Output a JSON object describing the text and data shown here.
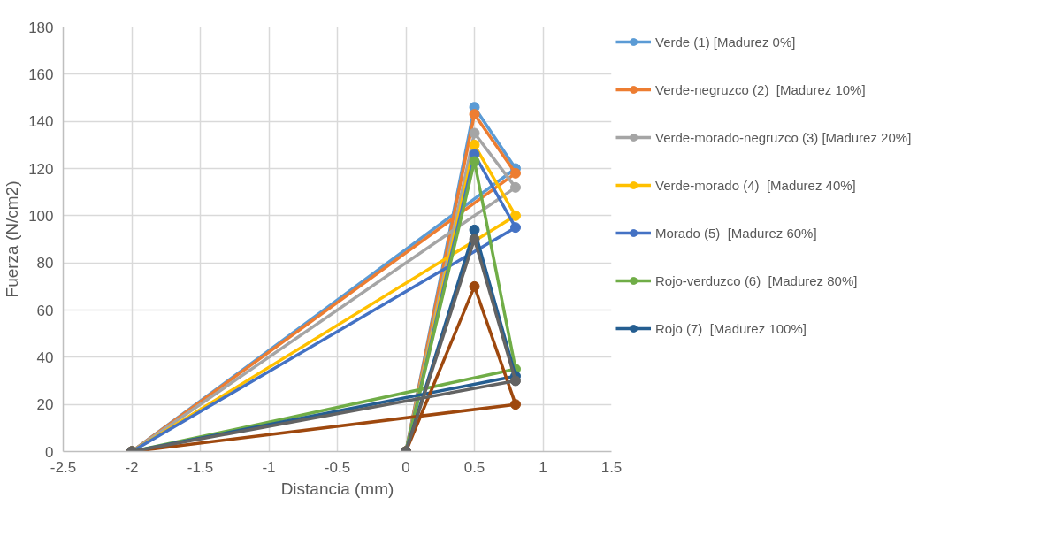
{
  "chart_data": {
    "type": "line",
    "xlabel": "Distancia (mm)",
    "ylabel": "Fuerza (N/cm2)",
    "xlim": [
      -2.5,
      1.5
    ],
    "xticks": [
      -2.5,
      -2,
      -1.5,
      -1,
      -0.5,
      0,
      0.5,
      1,
      1.5
    ],
    "ylim": [
      0,
      180
    ],
    "yticks": [
      0,
      20,
      40,
      60,
      80,
      100,
      120,
      140,
      160,
      180
    ],
    "grid": true,
    "legend": "right",
    "marker": "circle",
    "line_style": "solid",
    "series": [
      {
        "name": "Verde (1) [Madurez 0%]",
        "color": "#5b9bd5",
        "x": [
          0,
          0.5,
          0.8,
          -2
        ],
        "values": [
          0,
          146,
          120,
          0
        ]
      },
      {
        "name": "Verde-negruzco (2)  [Madurez 10%]",
        "color": "#ed7d31",
        "x": [
          0,
          0.5,
          0.8,
          -2
        ],
        "values": [
          0,
          143,
          118,
          0
        ]
      },
      {
        "name": "Verde-morado-negruzco (3) [Madurez 20%]",
        "color": "#a5a5a5",
        "x": [
          0,
          0.5,
          0.8,
          -2
        ],
        "values": [
          0,
          135,
          112,
          0
        ]
      },
      {
        "name": "Verde-morado (4)  [Madurez 40%]",
        "color": "#ffc000",
        "x": [
          0,
          0.5,
          0.8,
          -2
        ],
        "values": [
          0,
          130,
          100,
          0
        ]
      },
      {
        "name": "Morado (5)  [Madurez 60%]",
        "color": "#4472c4",
        "x": [
          0,
          0.5,
          0.8,
          -2
        ],
        "values": [
          0,
          126,
          95,
          0
        ]
      },
      {
        "name": "Rojo-verduzco (6)  [Madurez 80%]",
        "color": "#70ad47",
        "x": [
          0,
          0.5,
          0.8,
          -2
        ],
        "values": [
          0,
          123,
          35,
          0
        ]
      },
      {
        "name": "Rojo (7)  [Madurez 100%]",
        "color": "#255e91",
        "x": [
          0,
          0.5,
          0.8,
          -2
        ],
        "values": [
          0,
          94,
          32,
          0
        ]
      },
      {
        "color": "#9e480e",
        "x": [
          0,
          0.5,
          0.8,
          -2
        ],
        "values": [
          0,
          70,
          20,
          0
        ]
      },
      {
        "color": "#636363",
        "x": [
          0,
          0.5,
          0.8,
          -2
        ],
        "values": [
          0,
          90,
          30,
          0
        ]
      }
    ]
  }
}
